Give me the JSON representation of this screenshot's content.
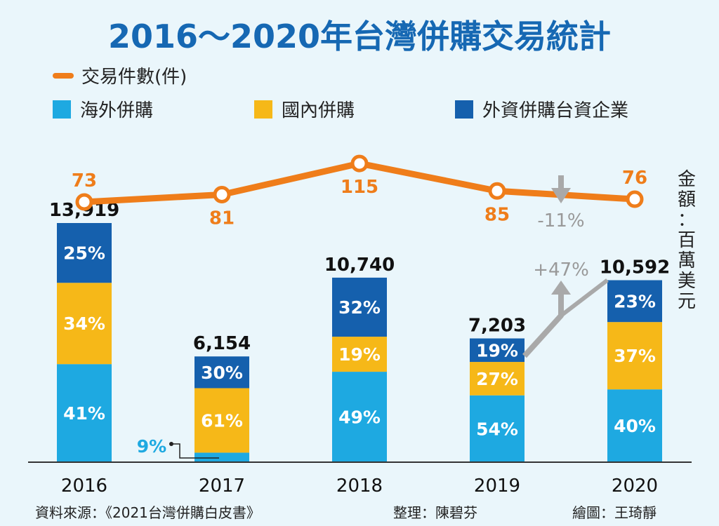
{
  "chart_data": {
    "type": "bar",
    "title": "2016～2020年台灣併購交易統計",
    "unit_label": "金額：百萬美元",
    "categories": [
      "2016",
      "2017",
      "2018",
      "2019",
      "2020"
    ],
    "totals": [
      13919,
      6154,
      10740,
      7203,
      10592
    ],
    "totals_labels": [
      "13,919",
      "6,154",
      "10,740",
      "7,203",
      "10,592"
    ],
    "ylim": [
      0,
      14000
    ],
    "series": [
      {
        "name": "海外併購",
        "color": "#1ea9e1",
        "values": [
          41,
          9,
          49,
          54,
          40
        ],
        "labels": [
          "41%",
          "9%",
          "49%",
          "54%",
          "40%"
        ]
      },
      {
        "name": "國內併購",
        "color": "#f6b818",
        "values": [
          34,
          61,
          19,
          27,
          37
        ],
        "labels": [
          "34%",
          "61%",
          "19%",
          "27%",
          "37%"
        ]
      },
      {
        "name": "外資併購台資企業",
        "color": "#1560ad",
        "values": [
          25,
          30,
          32,
          19,
          23
        ],
        "labels": [
          "25%",
          "30%",
          "32%",
          "19%",
          "23%"
        ]
      }
    ],
    "line": {
      "name": "交易件數(件)",
      "color": "#ef7d1a",
      "values": [
        73,
        81,
        115,
        85,
        76
      ],
      "labels": [
        "73",
        "81",
        "115",
        "85",
        "76"
      ],
      "ylim": [
        50,
        130
      ]
    },
    "annotations": {
      "count_change": "-11%",
      "amount_change": "+47%"
    },
    "legend_placement": "top-left"
  },
  "footer": {
    "source": "資料來源：《2021台灣併購白皮書》",
    "editor": "整理：陳碧芬",
    "illustrator": "繪圖：王琦靜"
  },
  "colors": {
    "background": "#eaf6fb",
    "title": "#1668b3",
    "axis": "#333333",
    "arrow": "#a9a9a9"
  }
}
